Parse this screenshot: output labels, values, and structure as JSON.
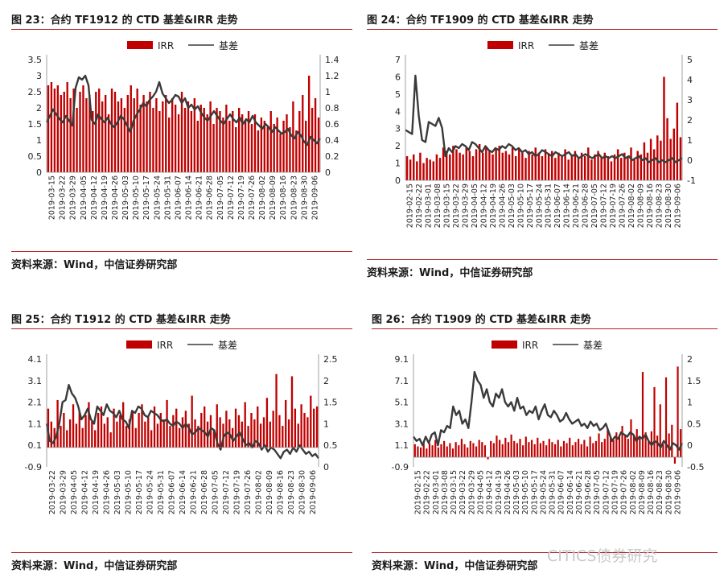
{
  "watermark": "CITICS债券研究",
  "source_text": "资料来源：Wind，中信证券研究部",
  "legend": {
    "bar_label": "IRR",
    "line_label": "基差"
  },
  "colors": {
    "bar": "#c00000",
    "line": "#3a3a3a",
    "rule": "#b22222"
  },
  "chart_data": [
    {
      "type": "bar",
      "title": "图 23：合约 TF1912 的 CTD 基差&IRR 走势",
      "left_ticks": [
        "3.5",
        "3",
        "2.5",
        "2",
        "1.5",
        "1",
        "0.5",
        "0"
      ],
      "right_ticks": [
        "1.4",
        "1.2",
        "1",
        "0.8",
        "0.6",
        "0.4",
        "0.2",
        "0"
      ],
      "ylim_left": [
        0,
        3.5
      ],
      "ylim_right": [
        0,
        1.4
      ],
      "x_ticks": [
        "2019-03-15",
        "2019-03-22",
        "2019-03-29",
        "2019-04-05",
        "2019-04-12",
        "2019-04-19",
        "2019-04-26",
        "2019-05-03",
        "2019-05-10",
        "2019-05-17",
        "2019-05-24",
        "2019-05-31",
        "2019-06-07",
        "2019-06-14",
        "2019-06-21",
        "2019-06-28",
        "2019-07-05",
        "2019-07-12",
        "2019-07-19",
        "2019-07-26",
        "2019-08-02",
        "2019-08-09",
        "2019-08-16",
        "2019-08-23",
        "2019-08-30",
        "2019-09-06"
      ],
      "irr": [
        2.7,
        2.8,
        2.6,
        2.7,
        2.4,
        2.5,
        2.8,
        2.3,
        2.6,
        2.0,
        2.5,
        2.7,
        2.3,
        2.4,
        1.9,
        2.5,
        2.6,
        2.2,
        2.4,
        1.8,
        2.6,
        2.5,
        2.2,
        2.3,
        2.0,
        2.4,
        2.7,
        2.3,
        2.6,
        2.1,
        2.4,
        2.2,
        2.5,
        2.0,
        2.3,
        1.9,
        2.2,
        2.4,
        1.7,
        2.3,
        2.1,
        1.8,
        2.5,
        2.0,
        2.2,
        1.9,
        2.3,
        1.6,
        2.1,
        2.0,
        1.8,
        2.2,
        1.5,
        2.0,
        1.9,
        1.7,
        2.1,
        1.6,
        1.9,
        1.4,
        2.0,
        1.8,
        1.6,
        1.9,
        1.5,
        1.8,
        1.3,
        1.7,
        1.6,
        1.4,
        1.9,
        1.5,
        1.7,
        1.2,
        1.6,
        1.8,
        1.4,
        2.2,
        1.3,
        1.9,
        2.4,
        1.6,
        3.0,
        2.0,
        2.3,
        1.7
      ],
      "basis": [
        0.62,
        0.7,
        0.78,
        0.72,
        0.66,
        0.62,
        0.7,
        0.64,
        0.58,
        1.05,
        1.18,
        1.15,
        1.2,
        1.08,
        0.65,
        0.6,
        0.72,
        0.66,
        0.62,
        0.68,
        0.6,
        0.56,
        0.62,
        0.7,
        0.66,
        0.58,
        0.5,
        0.64,
        0.72,
        0.78,
        0.86,
        0.82,
        0.9,
        0.94,
        1.0,
        1.12,
        0.98,
        0.92,
        0.86,
        0.9,
        0.96,
        0.94,
        0.86,
        0.92,
        0.8,
        0.84,
        0.78,
        0.82,
        0.74,
        0.68,
        0.64,
        0.7,
        0.76,
        0.7,
        0.64,
        0.6,
        0.66,
        0.72,
        0.66,
        0.62,
        0.68,
        0.6,
        0.66,
        0.62,
        0.7,
        0.62,
        0.58,
        0.54,
        0.6,
        0.56,
        0.5,
        0.56,
        0.52,
        0.48,
        0.5,
        0.54,
        0.46,
        0.42,
        0.5,
        0.46,
        0.38,
        0.34,
        0.44,
        0.4,
        0.36,
        0.42
      ]
    },
    {
      "type": "bar",
      "title": "图 24：合约 TF1909 的 CTD 基差&IRR 走势",
      "left_ticks": [
        "7",
        "6",
        "5",
        "4",
        "3",
        "2",
        "1",
        "0"
      ],
      "right_ticks": [
        "5",
        "4",
        "3",
        "2",
        "1",
        "0",
        "-1"
      ],
      "ylim_left": [
        0,
        7
      ],
      "ylim_right": [
        -1,
        5
      ],
      "x_ticks": [
        "2019-02-15",
        "2019-02-22",
        "2019-03-01",
        "2019-03-08",
        "2019-03-15",
        "2019-03-22",
        "2019-03-29",
        "2019-04-05",
        "2019-04-12",
        "2019-04-19",
        "2019-04-26",
        "2019-05-03",
        "2019-05-10",
        "2019-05-17",
        "2019-05-24",
        "2019-05-31",
        "2019-06-07",
        "2019-06-14",
        "2019-06-21",
        "2019-06-28",
        "2019-07-05",
        "2019-07-12",
        "2019-07-19",
        "2019-07-26",
        "2019-08-02",
        "2019-08-09",
        "2019-08-16",
        "2019-08-23",
        "2019-08-30",
        "2019-09-06"
      ],
      "irr": [
        1.4,
        1.2,
        1.5,
        1.1,
        1.6,
        1.0,
        1.3,
        1.2,
        1.1,
        1.5,
        1.3,
        1.9,
        1.7,
        1.5,
        2.0,
        1.8,
        1.6,
        1.5,
        1.9,
        1.7,
        1.4,
        1.8,
        2.1,
        1.6,
        1.9,
        1.7,
        1.5,
        1.8,
        2.0,
        1.6,
        1.7,
        1.5,
        1.9,
        1.4,
        1.8,
        1.6,
        1.3,
        1.7,
        1.5,
        1.9,
        1.6,
        1.4,
        1.8,
        1.5,
        1.7,
        1.3,
        1.6,
        1.4,
        1.8,
        1.2,
        1.5,
        1.7,
        1.3,
        1.6,
        1.4,
        1.9,
        1.2,
        1.5,
        1.7,
        1.3,
        1.6,
        1.4,
        1.1,
        1.5,
        1.8,
        1.3,
        1.6,
        1.4,
        1.9,
        1.2,
        1.7,
        1.5,
        2.2,
        1.6,
        2.4,
        1.8,
        2.6,
        2.3,
        6.0,
        3.6,
        2.4,
        3.0,
        4.5,
        2.5
      ],
      "basis": [
        1.5,
        1.4,
        1.3,
        4.2,
        2.2,
        1.0,
        0.9,
        1.9,
        1.8,
        1.7,
        2.1,
        1.6,
        0.2,
        0.6,
        0.4,
        0.7,
        0.6,
        0.8,
        0.7,
        0.5,
        0.9,
        0.8,
        0.6,
        0.4,
        0.7,
        0.5,
        0.4,
        0.6,
        0.5,
        0.7,
        0.6,
        0.8,
        0.7,
        0.5,
        0.6,
        0.4,
        0.5,
        0.3,
        0.4,
        0.2,
        0.3,
        0.5,
        0.4,
        0.3,
        0.2,
        0.4,
        0.3,
        0.2,
        0.3,
        0.4,
        0.2,
        0.3,
        0.1,
        0.2,
        0.3,
        0.2,
        0.1,
        0.2,
        0.3,
        0.1,
        0.2,
        0.1,
        0.2,
        0.1,
        0.2,
        0.3,
        0.1,
        0.2,
        0.0,
        0.1,
        0.2,
        0.0,
        0.1,
        -0.1,
        0.0,
        0.1,
        -0.1,
        0.0,
        -0.1,
        0.0,
        0.1,
        -0.1,
        0.0,
        0.1
      ]
    },
    {
      "type": "bar",
      "title": "图 25：合约 T1912 的 CTD 基差&IRR 走势",
      "left_ticks": [
        "4.1",
        "3.1",
        "2.1",
        "1.1",
        "0.1",
        "-0.9"
      ],
      "right_ticks": [
        "2.5",
        "2",
        "1.5",
        "1",
        "0.5",
        "0"
      ],
      "ylim_left": [
        -0.9,
        4.1
      ],
      "ylim_right": [
        0,
        2.5
      ],
      "x_ticks": [
        "2019-03-22",
        "2019-03-29",
        "2019-04-05",
        "2019-04-12",
        "2019-04-19",
        "2019-04-26",
        "2019-05-03",
        "2019-05-10",
        "2019-05-17",
        "2019-05-24",
        "2019-05-31",
        "2019-06-07",
        "2019-06-14",
        "2019-06-21",
        "2019-06-28",
        "2019-07-05",
        "2019-07-12",
        "2019-07-19",
        "2019-07-26",
        "2019-08-02",
        "2019-08-09",
        "2019-08-16",
        "2019-08-23",
        "2019-08-30",
        "2019-09-06"
      ],
      "irr": [
        1.8,
        1.2,
        0.9,
        2.2,
        1.0,
        1.6,
        0.8,
        1.3,
        2.0,
        1.1,
        1.7,
        0.9,
        1.5,
        2.1,
        1.2,
        0.8,
        1.6,
        1.9,
        1.1,
        1.4,
        0.7,
        1.8,
        1.2,
        1.5,
        2.1,
        1.0,
        1.3,
        1.7,
        0.9,
        1.6,
        2.0,
        1.2,
        1.4,
        0.8,
        1.9,
        1.1,
        1.6,
        1.3,
        2.2,
        1.0,
        1.5,
        1.8,
        0.9,
        1.4,
        1.7,
        1.1,
        2.4,
        1.3,
        1.0,
        1.6,
        1.9,
        1.2,
        1.5,
        0.8,
        2.0,
        1.4,
        1.1,
        1.7,
        1.3,
        0.9,
        1.8,
        1.5,
        1.2,
        2.1,
        1.0,
        1.6,
        1.3,
        1.9,
        1.1,
        1.4,
        2.3,
        1.2,
        1.7,
        3.4,
        1.5,
        1.0,
        2.2,
        1.3,
        3.3,
        1.8,
        1.1,
        2.0,
        1.6,
        1.4,
        2.4,
        1.8,
        1.9
      ],
      "basis": [
        1.0,
        0.6,
        0.55,
        0.7,
        1.0,
        1.5,
        1.55,
        1.9,
        1.7,
        1.6,
        1.4,
        1.1,
        1.2,
        1.35,
        1.1,
        1.0,
        1.4,
        1.3,
        1.2,
        1.45,
        1.3,
        1.25,
        1.15,
        1.3,
        1.1,
        1.05,
        0.9,
        1.3,
        1.25,
        1.4,
        1.35,
        1.2,
        1.15,
        1.3,
        1.25,
        1.2,
        1.1,
        1.05,
        1.1,
        1.0,
        0.95,
        1.05,
        1.0,
        0.9,
        1.0,
        0.9,
        0.75,
        0.8,
        0.9,
        0.85,
        0.8,
        0.7,
        0.9,
        0.85,
        0.55,
        0.4,
        0.7,
        0.8,
        0.75,
        0.6,
        0.7,
        0.8,
        0.65,
        0.5,
        0.55,
        0.45,
        0.6,
        0.55,
        0.4,
        0.5,
        0.35,
        0.45,
        0.4,
        0.3,
        0.2,
        0.35,
        0.4,
        0.3,
        0.45,
        0.35,
        0.5,
        0.4,
        0.3,
        0.35,
        0.25,
        0.3,
        0.2
      ]
    },
    {
      "type": "bar",
      "title": "图 26：合约 T1909 的 CTD 基差&IRR 走势",
      "left_ticks": [
        "9.1",
        "7.1",
        "5.1",
        "3.1",
        "1.1",
        "-0.9"
      ],
      "right_ticks": [
        "2",
        "1.5",
        "1",
        "0.5",
        "0",
        "-0.5"
      ],
      "ylim_left": [
        -0.9,
        9.1
      ],
      "ylim_right": [
        -0.5,
        2
      ],
      "x_ticks": [
        "2019-02-15",
        "2019-02-22",
        "2019-03-01",
        "2019-03-08",
        "2019-03-15",
        "2019-03-22",
        "2019-03-29",
        "2019-04-05",
        "2019-04-12",
        "2019-04-19",
        "2019-04-26",
        "2019-05-03",
        "2019-05-10",
        "2019-05-17",
        "2019-05-24",
        "2019-05-31",
        "2019-06-07",
        "2019-06-14",
        "2019-06-21",
        "2019-06-28",
        "2019-07-05",
        "2019-07-12",
        "2019-07-19",
        "2019-07-26",
        "2019-08-02",
        "2019-08-09",
        "2019-08-16",
        "2019-08-23",
        "2019-08-30",
        "2019-09-06"
      ],
      "irr": [
        1.2,
        1.0,
        0.9,
        1.4,
        0.8,
        1.3,
        1.1,
        1.6,
        0.9,
        1.2,
        1.5,
        1.0,
        1.3,
        0.8,
        1.4,
        1.1,
        1.7,
        1.2,
        0.9,
        1.5,
        1.3,
        1.0,
        1.6,
        1.4,
        1.1,
        -0.2,
        1.5,
        1.3,
        2.0,
        1.6,
        1.2,
        1.8,
        1.4,
        2.1,
        1.5,
        1.3,
        1.7,
        1.1,
        1.9,
        1.4,
        1.6,
        1.2,
        1.8,
        1.3,
        1.5,
        1.1,
        1.7,
        1.4,
        1.2,
        1.6,
        1.0,
        1.5,
        1.3,
        1.8,
        1.1,
        1.4,
        1.7,
        1.2,
        1.6,
        1.0,
        1.9,
        1.3,
        1.5,
        2.2,
        1.4,
        1.7,
        2.6,
        1.8,
        1.6,
        2.3,
        1.9,
        2.9,
        2.1,
        1.7,
        3.5,
        2.0,
        2.6,
        1.8,
        7.9,
        2.3,
        1.5,
        2.4,
        6.5,
        2.0,
        4.9,
        1.2,
        7.4,
        2.2,
        3.0,
        -0.6,
        8.4,
        2.6
      ],
      "basis": [
        0.2,
        0.1,
        0.15,
        0.0,
        0.2,
        0.05,
        0.25,
        0.3,
        0.0,
        0.35,
        0.3,
        0.45,
        0.4,
        0.9,
        0.7,
        0.8,
        0.5,
        0.6,
        0.4,
        1.0,
        1.7,
        1.5,
        1.4,
        1.1,
        1.3,
        1.0,
        0.9,
        1.2,
        1.1,
        1.3,
        1.0,
        0.9,
        1.0,
        0.8,
        1.1,
        0.85,
        0.9,
        0.7,
        0.8,
        0.75,
        0.9,
        0.6,
        0.8,
        0.95,
        0.7,
        0.65,
        0.8,
        0.7,
        0.55,
        0.6,
        0.75,
        0.6,
        0.5,
        0.55,
        0.6,
        0.45,
        0.5,
        0.4,
        0.55,
        0.45,
        0.5,
        0.35,
        0.4,
        0.5,
        0.3,
        0.1,
        0.2,
        0.15,
        0.3,
        0.25,
        0.2,
        0.3,
        0.25,
        0.1,
        0.2,
        0.15,
        0.25,
        0.1,
        0.0,
        0.1,
        0.05,
        -0.05,
        0.1,
        0.0,
        -0.1,
        0.05,
        0.0,
        -0.1,
        0.05
      ]
    }
  ]
}
